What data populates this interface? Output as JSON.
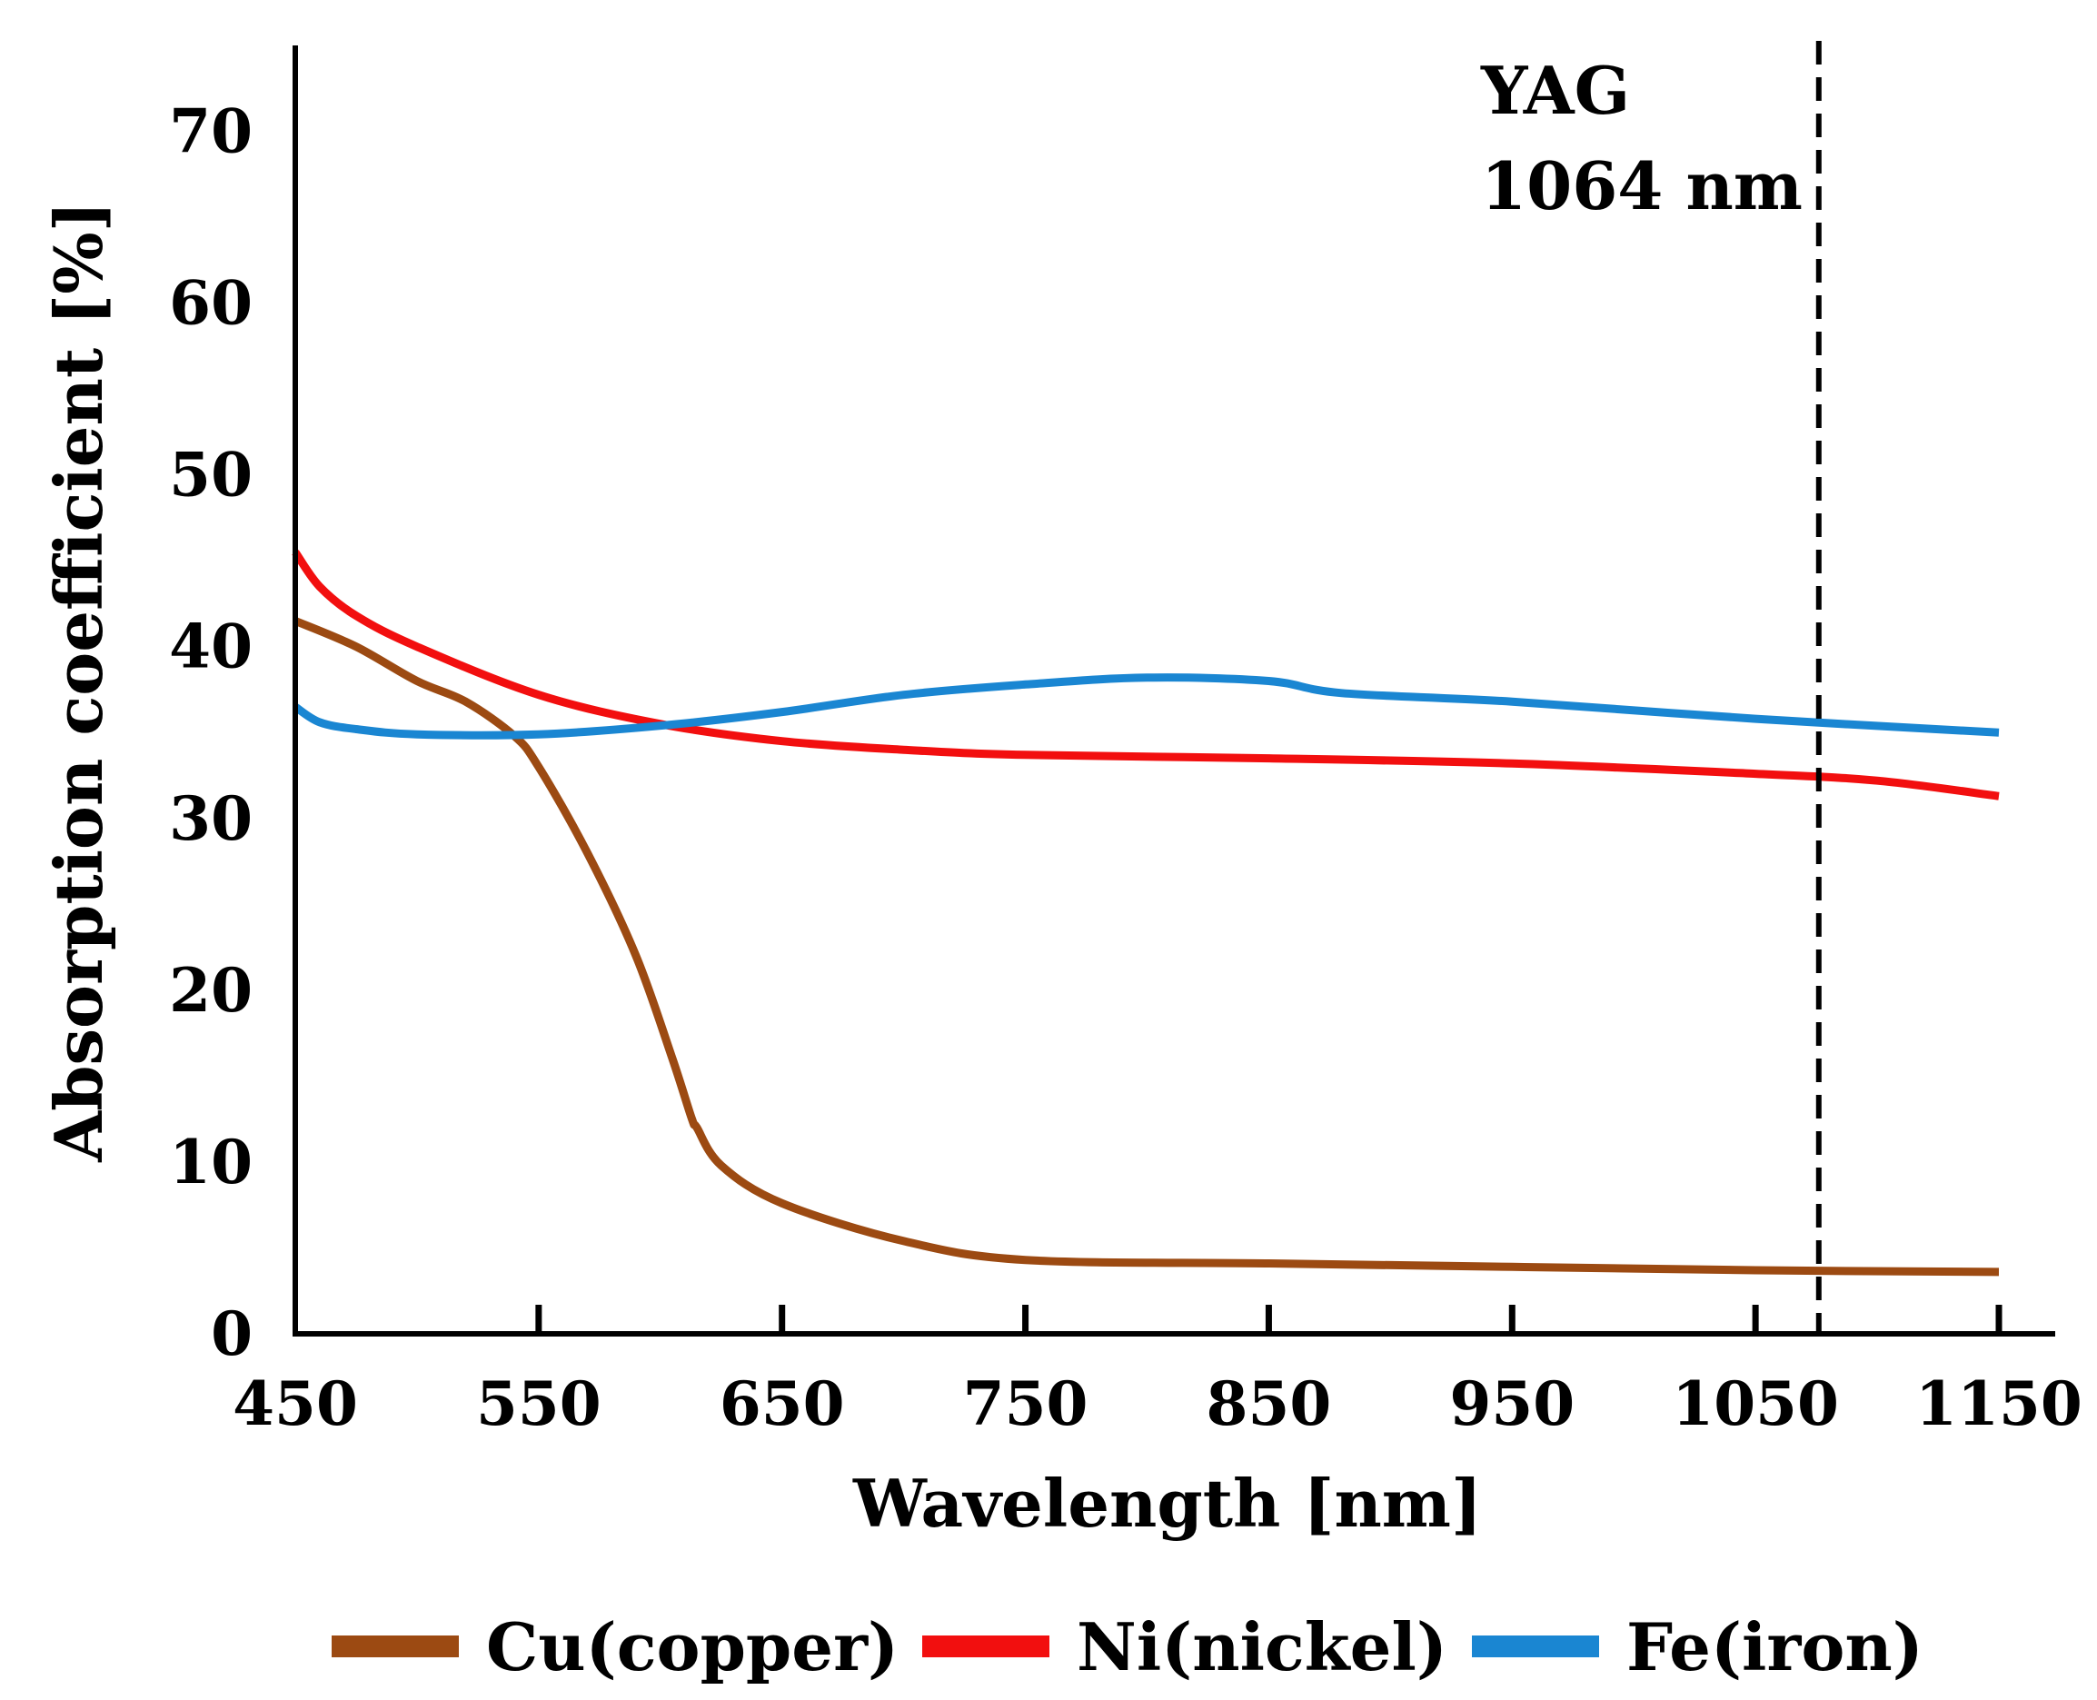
{
  "chart_data": {
    "type": "line",
    "title": "",
    "xlabel": "Wavelength [nm]",
    "ylabel": "Absorption coefficient [%]",
    "xlim": [
      450,
      1150
    ],
    "ylim": [
      0,
      75
    ],
    "xticks": [
      450,
      550,
      650,
      750,
      850,
      950,
      1050,
      1150
    ],
    "yticks": [
      0,
      10,
      20,
      30,
      40,
      50,
      60,
      70
    ],
    "xtick_labels": [
      "450",
      "550",
      "650",
      "750",
      "850",
      "950",
      "1050",
      "1150"
    ],
    "ytick_labels": [
      "0",
      "10",
      "20",
      "30",
      "40",
      "50",
      "60",
      "70"
    ],
    "grid": false,
    "legend_position": "bottom",
    "series": [
      {
        "name": "Cu(copper)",
        "color": "#9c4a12",
        "x": [
          450,
          475,
          500,
          520,
          540,
          550,
          570,
          590,
          605,
          613,
          615,
          625,
          650,
          700,
          750,
          850,
          950,
          1050,
          1150
        ],
        "y": [
          41.5,
          40,
          38,
          36.8,
          34.8,
          33,
          28,
          22,
          16,
          12.5,
          12,
          9.8,
          7.6,
          5.4,
          4.3,
          4.1,
          3.9,
          3.7,
          3.6
        ]
      },
      {
        "name": "Ni(nickel)",
        "color": "#f20f0f",
        "x": [
          450,
          460,
          475,
          500,
          550,
          600,
          650,
          700,
          750,
          850,
          950,
          1050,
          1100,
          1150
        ],
        "y": [
          45.5,
          43.5,
          41.8,
          40,
          37.2,
          35.5,
          34.5,
          34,
          33.7,
          33.5,
          33.2,
          32.6,
          32.2,
          31.3
        ]
      },
      {
        "name": "Fe(iron)",
        "color": "#1a86d2",
        "x": [
          450,
          460,
          475,
          500,
          550,
          600,
          650,
          700,
          750,
          800,
          850,
          880,
          950,
          1050,
          1150
        ],
        "y": [
          36.5,
          35.6,
          35.2,
          34.9,
          34.9,
          35.4,
          36.2,
          37.2,
          37.8,
          38.2,
          38.0,
          37.3,
          36.8,
          35.8,
          35.0
        ]
      }
    ],
    "annotations": [
      {
        "text": "YAG",
        "line2": "1064 nm",
        "x": 1076,
        "style": "dashed-vertical-line"
      }
    ]
  }
}
